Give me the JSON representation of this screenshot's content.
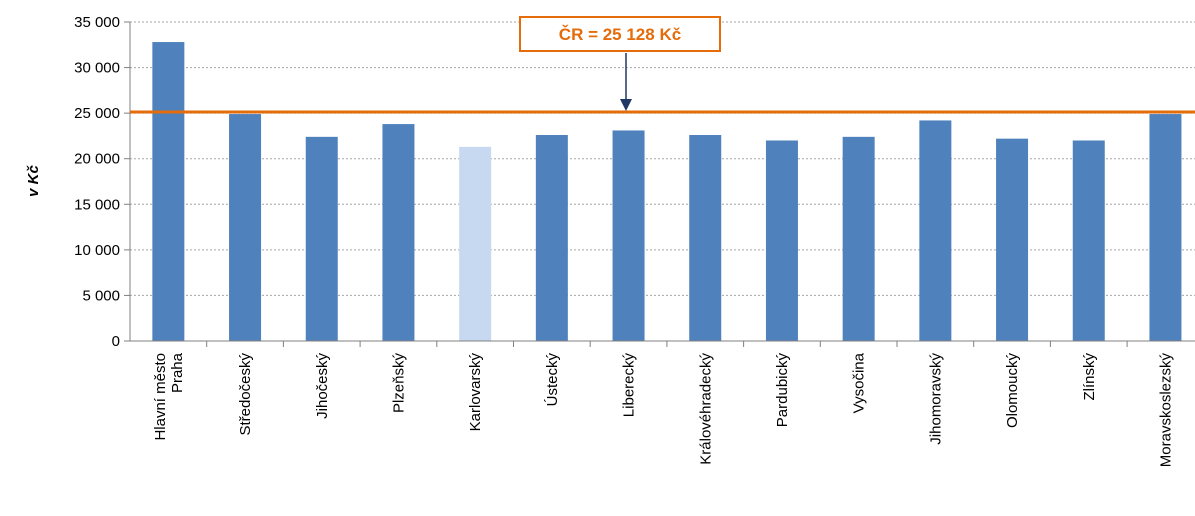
{
  "chart_data": {
    "type": "bar",
    "ylabel": "v Kč",
    "xlabel": "",
    "ylim": [
      0,
      35000
    ],
    "yticks": [
      0,
      5000,
      10000,
      15000,
      20000,
      25000,
      30000,
      35000
    ],
    "ytick_labels": [
      "0",
      "5 000",
      "10 000",
      "15 000",
      "20 000",
      "25 000",
      "30 000",
      "35 000"
    ],
    "grid": true,
    "categories": [
      "Hlavní město Praha",
      "Středočeský",
      "Jihočeský",
      "Plzeňský",
      "Karlovarský",
      "Ústecký",
      "Liberecký",
      "Královéhradecký",
      "Pardubický",
      "Vysočina",
      "Jihomoravský",
      "Olomoucký",
      "Zlínský",
      "Moravskoslezský"
    ],
    "category_lines": [
      [
        "Hlavní město",
        "Praha"
      ],
      [
        "Středočeský"
      ],
      [
        "Jihočeský"
      ],
      [
        "Plzeňský"
      ],
      [
        "Karlovarský"
      ],
      [
        "Ústecký"
      ],
      [
        "Liberecký"
      ],
      [
        "Královéhradecký"
      ],
      [
        "Pardubický"
      ],
      [
        "Vysočina"
      ],
      [
        "Jihomoravský"
      ],
      [
        "Olomoucký"
      ],
      [
        "Zlínský"
      ],
      [
        "Moravskoslezský"
      ]
    ],
    "values": [
      32800,
      24900,
      22400,
      23800,
      21300,
      22600,
      23100,
      22600,
      22000,
      22400,
      24200,
      22200,
      22000,
      24900
    ],
    "highlight_index": 4,
    "colors": {
      "bar": "#4F81BD",
      "highlight": "#C6D9F1",
      "reference": "#E46C0A",
      "grid": "#A6A6A6",
      "axis": "#808080"
    },
    "reference_line": {
      "value": 25128,
      "label": "ČR = 25 128 Kč"
    }
  }
}
